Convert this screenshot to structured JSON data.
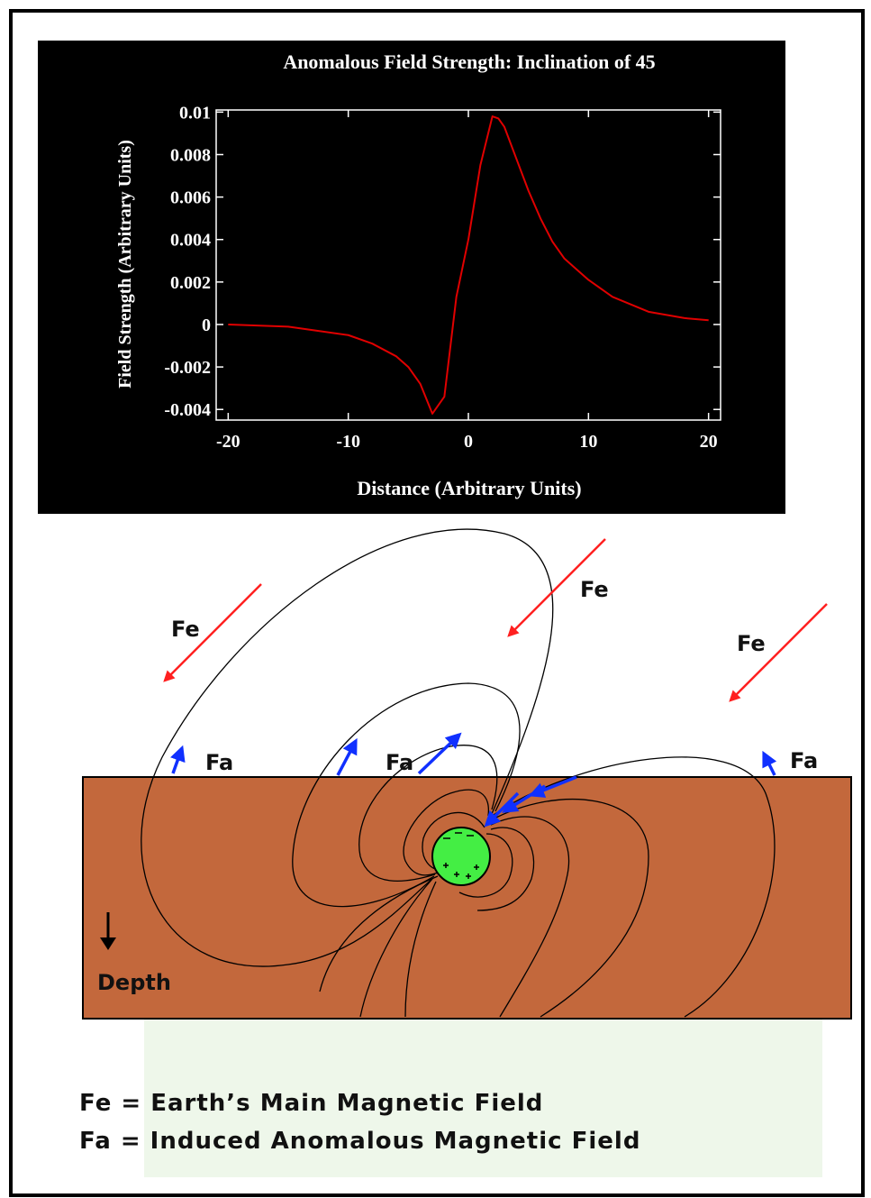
{
  "chart_data": {
    "type": "line",
    "title": "Anomalous Field Strength: Inclination of 45",
    "xlabel": "Distance (Arbitrary Units)",
    "ylabel": "Field Strength (Arbitrary Units)",
    "x": [
      -20,
      -15,
      -10,
      -8,
      -6,
      -5,
      -4,
      -3,
      -2,
      -1,
      0,
      1,
      2,
      2.5,
      3,
      4,
      5,
      6,
      7,
      8,
      10,
      12,
      15,
      18,
      20
    ],
    "values": [
      0,
      -0.0001,
      -0.0005,
      -0.0009,
      -0.0015,
      -0.002,
      -0.0028,
      -0.0042,
      -0.0034,
      0.0013,
      0.004,
      0.0075,
      0.0098,
      0.0097,
      0.0093,
      0.0078,
      0.0063,
      0.005,
      0.0039,
      0.0031,
      0.0021,
      0.0013,
      0.0006,
      0.0003,
      0.0002
    ],
    "color": "#e00000",
    "xlim": [
      -21,
      21
    ],
    "ylim": [
      -0.0045,
      0.0101
    ],
    "xticks": [
      -20,
      -10,
      0,
      10,
      20
    ],
    "yticks": [
      0.01,
      0.008,
      0.006,
      0.004,
      0.002,
      0,
      -0.002,
      -0.004
    ]
  },
  "diagram": {
    "fe_labels": [
      "Fe",
      "Fe",
      "Fe"
    ],
    "fa_labels": [
      "Fa",
      "Fa",
      "Fa"
    ],
    "depth": "Depth",
    "legend": [
      "Fe = Earth’s Main Magnetic Field",
      "Fa = Induced Anomalous Magnetic Field"
    ]
  }
}
